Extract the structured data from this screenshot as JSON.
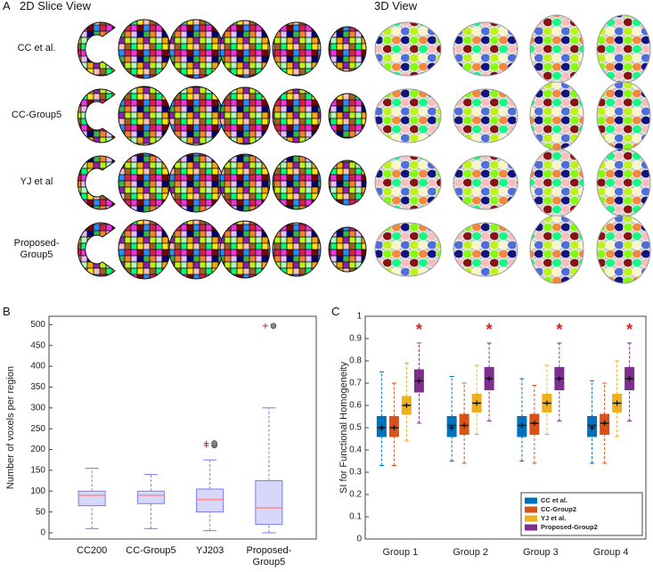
{
  "panel_a": {
    "label": "A",
    "left_title": "2D Slice View",
    "right_title": "3D View",
    "rows": [
      "CC et al.",
      "CC-Group5",
      "YJ et al",
      "Proposed-\nGroup5"
    ]
  },
  "chart_data": [
    {
      "type": "box",
      "panel_label": "B",
      "ylabel": "Number of voxels per region",
      "categories": [
        "CC200",
        "CC-Group5",
        "YJ203",
        "Proposed-\nGroup5"
      ],
      "q1": [
        65,
        70,
        50,
        20
      ],
      "median": [
        90,
        90,
        80,
        60
      ],
      "q3": [
        100,
        100,
        105,
        125
      ],
      "whislo": [
        10,
        10,
        5,
        0
      ],
      "whishi": [
        155,
        140,
        175,
        300
      ],
      "outliers": [
        [],
        [],
        [
          210,
          215
        ],
        [
          497
        ]
      ],
      "color": "#7a7af0",
      "median_color": "#ff8a8a",
      "outlier_color": "#e02020",
      "ylim": [
        -15,
        520
      ],
      "yticks": [
        0,
        50,
        100,
        150,
        200,
        250,
        300,
        350,
        400,
        450,
        500
      ]
    },
    {
      "type": "box",
      "panel_label": "C",
      "ylabel": "SI for Functional Homogeneity",
      "categories": [
        "Group 1",
        "Group 2",
        "Group 3",
        "Group 4"
      ],
      "series": [
        {
          "name": "CC et al.",
          "color": "#0072bd",
          "q1": [
            0.46,
            0.46,
            0.46,
            0.46
          ],
          "median": [
            0.5,
            0.51,
            0.51,
            0.51
          ],
          "q3": [
            0.55,
            0.55,
            0.55,
            0.55
          ],
          "whislo": [
            0.33,
            0.35,
            0.35,
            0.34
          ],
          "whishi": [
            0.75,
            0.73,
            0.72,
            0.71
          ],
          "mean": [
            0.5,
            0.5,
            0.51,
            0.5
          ]
        },
        {
          "name": "CC-Group2",
          "color": "#d95319",
          "q1": [
            0.46,
            0.47,
            0.47,
            0.47
          ],
          "median": [
            0.5,
            0.51,
            0.52,
            0.52
          ],
          "q3": [
            0.55,
            0.56,
            0.56,
            0.56
          ],
          "whislo": [
            0.33,
            0.34,
            0.34,
            0.34
          ],
          "whishi": [
            0.7,
            0.7,
            0.69,
            0.7
          ],
          "mean": [
            0.5,
            0.51,
            0.52,
            0.52
          ]
        },
        {
          "name": "YJ et al.",
          "color": "#edb120",
          "q1": [
            0.56,
            0.57,
            0.57,
            0.57
          ],
          "median": [
            0.6,
            0.61,
            0.61,
            0.61
          ],
          "q3": [
            0.64,
            0.65,
            0.65,
            0.65
          ],
          "whislo": [
            0.44,
            0.47,
            0.47,
            0.46
          ],
          "whishi": [
            0.79,
            0.78,
            0.78,
            0.8
          ],
          "mean": [
            0.6,
            0.61,
            0.61,
            0.61
          ]
        },
        {
          "name": "Proposed-Group2",
          "color": "#7e2f8e",
          "q1": [
            0.66,
            0.67,
            0.67,
            0.67
          ],
          "median": [
            0.71,
            0.72,
            0.72,
            0.72
          ],
          "q3": [
            0.76,
            0.77,
            0.77,
            0.77
          ],
          "whislo": [
            0.52,
            0.53,
            0.53,
            0.53
          ],
          "whishi": [
            0.88,
            0.88,
            0.88,
            0.88
          ],
          "mean": [
            0.71,
            0.72,
            0.72,
            0.72
          ]
        }
      ],
      "significance": [
        "*",
        "*",
        "*",
        "*"
      ],
      "significance_color": "#e02020",
      "legend": "lower right",
      "ylim": [
        0,
        1
      ],
      "yticks": [
        0,
        0.1,
        0.2,
        0.3,
        0.4,
        0.5,
        0.6,
        0.7,
        0.8,
        0.9,
        1
      ]
    }
  ]
}
